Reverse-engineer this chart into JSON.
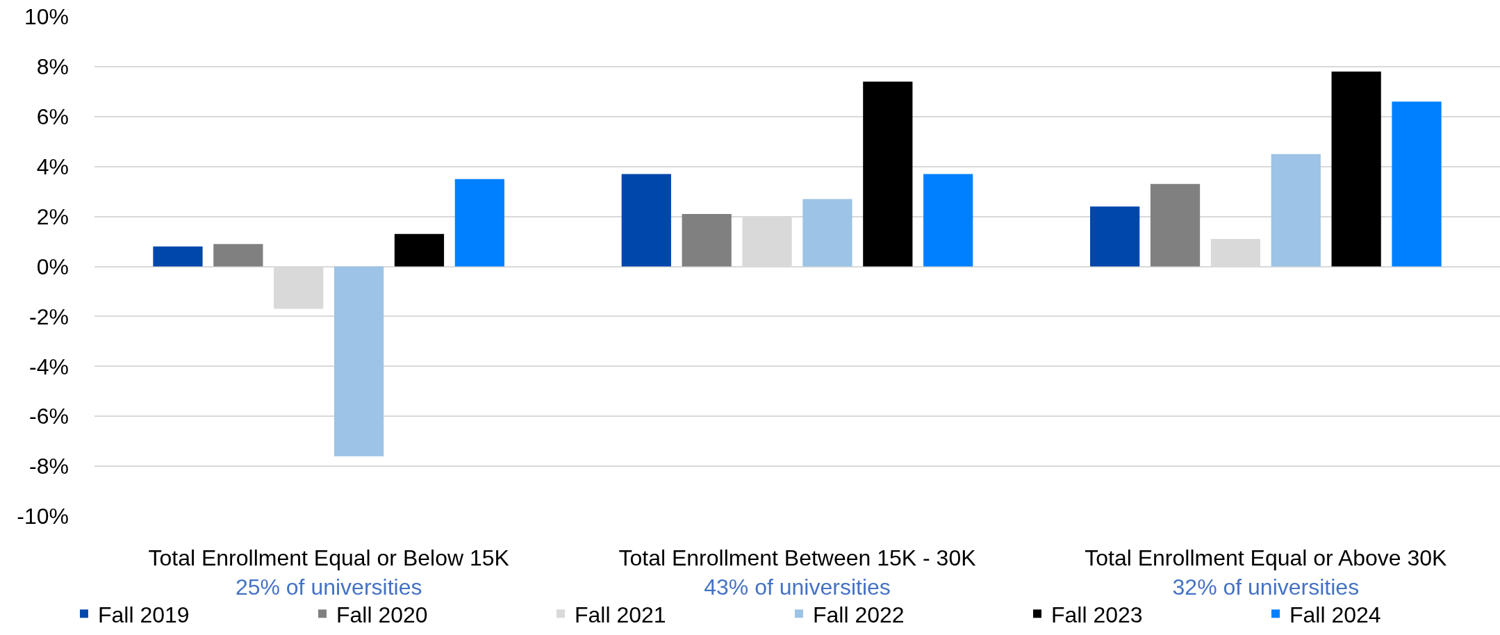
{
  "chart_data": {
    "type": "bar",
    "categories": [
      "Total Enrollment Equal or Below 15K\n25% of universities",
      "Total Enrollment Between 15K - 30K\n43% of universities",
      "Total Enrollment Equal or Above 30K\n32% of universities"
    ],
    "series": [
      {
        "name": "Fall 2019",
        "color": "#0047ab",
        "values": [
          0.8,
          3.7,
          2.4
        ]
      },
      {
        "name": "Fall 2020",
        "color": "#808080",
        "values": [
          0.9,
          2.1,
          3.3
        ]
      },
      {
        "name": "Fall 2021",
        "color": "#d9d9d9",
        "values": [
          -1.7,
          2.0,
          1.1
        ]
      },
      {
        "name": "Fall 2022",
        "color": "#9dc3e6",
        "values": [
          -7.6,
          2.7,
          4.5
        ]
      },
      {
        "name": "Fall 2023",
        "color": "#000000",
        "values": [
          1.3,
          7.4,
          7.8
        ]
      },
      {
        "name": "Fall 2024",
        "color": "#0080ff",
        "values": [
          3.5,
          3.7,
          6.6
        ]
      }
    ],
    "ylim": [
      -10,
      10
    ],
    "yticks": [
      {
        "value": -10,
        "label": "-10%"
      },
      {
        "value": -8,
        "label": "-8%"
      },
      {
        "value": -6,
        "label": "-6%"
      },
      {
        "value": -4,
        "label": "-4%"
      },
      {
        "value": -2,
        "label": "-2%"
      },
      {
        "value": 0,
        "label": "0%"
      },
      {
        "value": 2,
        "label": "2%"
      },
      {
        "value": 4,
        "label": "4%"
      },
      {
        "value": 6,
        "label": "6%"
      },
      {
        "value": 8,
        "label": "8%"
      },
      {
        "value": 10,
        "label": "10%"
      }
    ],
    "grid": "y",
    "legend": "bottom"
  }
}
